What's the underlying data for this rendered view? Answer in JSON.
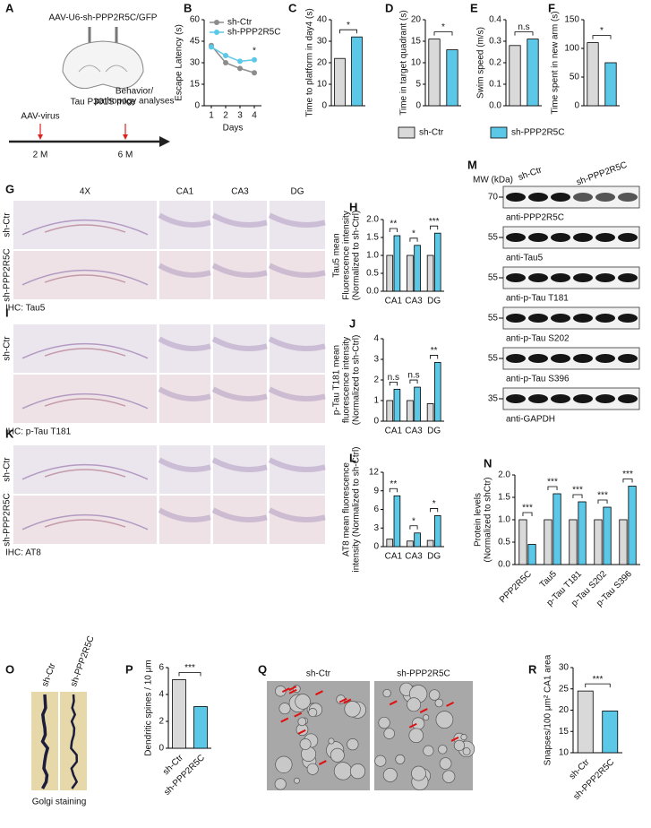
{
  "figure": {
    "A": {
      "letter": "A",
      "construct": "AAV-U6-sh-PPP2R5C/GFP",
      "mice": "Tau P301S mice",
      "injection": "AAV-virus",
      "analysis": [
        "Behavior/",
        "pathopogy analyses"
      ],
      "timepoints": [
        "2 M",
        "6 M"
      ]
    },
    "legend": [
      {
        "name": "sh-Ctr",
        "color": "#d9d9d9"
      },
      {
        "name": "sh-PPP2R5C",
        "color": "#5bc8e8"
      }
    ],
    "G": {
      "letter": "G",
      "columns": [
        "4X",
        "CA1",
        "CA3",
        "DG"
      ],
      "rows": [
        "sh-Ctr",
        "sh-PPP2R5C"
      ],
      "stain": "IHC: Tau5"
    },
    "I": {
      "letter": "I",
      "rows": [
        "sh-Ctr"
      ],
      "stain": "IHC: p-Tau T181"
    },
    "K": {
      "letter": "K",
      "rows": [
        "sh-Ctr",
        "sh-PPP2R5C"
      ],
      "stain": "IHC: AT8"
    },
    "M": {
      "letter": "M",
      "mw_label": "MW (kDa)",
      "groups": [
        "sh-Ctr",
        "sh-PPP2R5C"
      ],
      "blots": [
        {
          "mw": "70",
          "label": "anti-PPP2R5C"
        },
        {
          "mw": "55",
          "label": "anti-Tau5"
        },
        {
          "mw": "55",
          "label": "anti-p-Tau T181"
        },
        {
          "mw": "55",
          "label": "anti-p-Tau S202"
        },
        {
          "mw": "55",
          "label": "anti-p-Tau S396"
        },
        {
          "mw": "35",
          "label": "anti-GAPDH"
        }
      ]
    },
    "O": {
      "letter": "O",
      "groups": [
        "sh-Ctr",
        "sh-PPP2R5C"
      ],
      "caption": "Golgi staining"
    },
    "Q": {
      "letter": "Q",
      "groups": [
        "sh-Ctr",
        "sh-PPP2R5C"
      ]
    }
  },
  "chart_data": [
    {
      "type": "line",
      "panel": "B",
      "ylabel": [
        "Escape Latency (s)"
      ],
      "xlabel": "Days",
      "x": [
        1,
        2,
        3,
        4
      ],
      "xlim": [
        0.5,
        4.5
      ],
      "xticks": [
        1,
        2,
        3,
        4
      ],
      "ylim": [
        0,
        60
      ],
      "yticks": [
        0,
        15,
        30,
        45,
        60
      ],
      "series": [
        {
          "name": "sh-Ctr",
          "color": "#8c8c8c",
          "values": [
            42,
            30,
            26,
            23
          ]
        },
        {
          "name": "sh-PPP2R5C",
          "color": "#5bc8e8",
          "values": [
            41,
            35,
            31,
            32
          ]
        }
      ],
      "annotations": [
        "*"
      ]
    },
    {
      "type": "bar",
      "panel": "C",
      "ylabel": [
        "Time to platform in day4 (s)"
      ],
      "values": [
        22,
        32
      ],
      "colors": [
        "#d9d9d9",
        "#5bc8e8"
      ],
      "ylim": [
        0,
        40
      ],
      "yticks": [
        0,
        10,
        20,
        30,
        40
      ],
      "annotations": [
        "*"
      ]
    },
    {
      "type": "bar",
      "panel": "D",
      "ylabel": [
        "Time in target quadrant (s)"
      ],
      "values": [
        15.5,
        13
      ],
      "colors": [
        "#d9d9d9",
        "#5bc8e8"
      ],
      "ylim": [
        0,
        20
      ],
      "yticks": [
        0,
        5,
        10,
        15,
        20
      ],
      "annotations": [
        "*"
      ]
    },
    {
      "type": "bar",
      "panel": "E",
      "ylabel": [
        "Swim speed (m/s)"
      ],
      "values": [
        0.28,
        0.31
      ],
      "colors": [
        "#d9d9d9",
        "#5bc8e8"
      ],
      "ylim": [
        0,
        0.4
      ],
      "yticks": [
        {
          "value": 0,
          "label": "0.0"
        },
        0.1,
        0.2,
        0.3,
        0.4
      ],
      "annotations": [
        "n.s"
      ]
    },
    {
      "type": "bar",
      "panel": "F",
      "ylabel": [
        "Time spent in new arm (s)"
      ],
      "values": [
        110,
        75
      ],
      "colors": [
        "#d9d9d9",
        "#5bc8e8"
      ],
      "ylim": [
        0,
        150
      ],
      "yticks": [
        0,
        50,
        100,
        150
      ],
      "annotations": [
        "*"
      ]
    },
    {
      "type": "bar",
      "panel": "H",
      "ylabel": [
        "Tau5 mean",
        "Fluorescence intensity",
        "(Normalized to sh-Ctrl)"
      ],
      "categories": [
        "CA1",
        "CA3",
        "DG"
      ],
      "series": [
        {
          "color": "#d9d9d9",
          "values": [
            1.0,
            1.0,
            1.0
          ]
        },
        {
          "color": "#5bc8e8",
          "values": [
            1.55,
            1.28,
            1.62
          ]
        }
      ],
      "ylim": [
        0,
        2
      ],
      "yticks": [
        {
          "value": 0,
          "label": "0.0"
        },
        0.5,
        {
          "value": 1,
          "label": "1.0"
        },
        1.5,
        {
          "value": 2,
          "label": "2.0"
        }
      ],
      "annotations": [
        "**",
        "*",
        "***"
      ]
    },
    {
      "type": "bar",
      "panel": "J",
      "ylabel": [
        "p-Tau T181 mean",
        "fluorescence intensity",
        "(Normalized to sh-Ctrl)"
      ],
      "categories": [
        "CA1",
        "CA3",
        "DG"
      ],
      "series": [
        {
          "color": "#d9d9d9",
          "values": [
            1.0,
            1.0,
            0.85
          ]
        },
        {
          "color": "#5bc8e8",
          "values": [
            1.55,
            1.65,
            2.85
          ]
        }
      ],
      "ylim": [
        0,
        4
      ],
      "yticks": [
        0,
        1,
        2,
        3,
        4
      ],
      "annotations": [
        "n.s",
        "n.s",
        "**"
      ]
    },
    {
      "type": "bar",
      "panel": "L",
      "ylabel": [
        "AT8 mean fluorescence",
        "intensity (Normalized to sh-Ctrl)"
      ],
      "categories": [
        "CA1",
        "CA3",
        "DG"
      ],
      "series": [
        {
          "color": "#d9d9d9",
          "values": [
            1.2,
            0.9,
            1.0
          ]
        },
        {
          "color": "#5bc8e8",
          "values": [
            8.2,
            2.2,
            5.0
          ]
        }
      ],
      "ylim": [
        0,
        12
      ],
      "yticks": [
        0,
        3,
        6,
        9,
        12
      ],
      "annotations": [
        "**",
        "*",
        "*"
      ]
    },
    {
      "type": "bar",
      "panel": "N",
      "ylabel": [
        "Protein levels",
        "(Normalized to shCtr)"
      ],
      "categories": [
        "PPP2R5C",
        "Tau5",
        "p-Tau T181",
        "p-Tau S202",
        "p-Tau S396"
      ],
      "series": [
        {
          "color": "#d9d9d9",
          "values": [
            1.0,
            1.0,
            1.0,
            1.0,
            1.0
          ]
        },
        {
          "color": "#5bc8e8",
          "values": [
            0.45,
            1.58,
            1.4,
            1.28,
            1.75
          ]
        }
      ],
      "ylim": [
        0,
        2
      ],
      "yticks": [
        {
          "value": 0,
          "label": "0.0"
        },
        0.5,
        {
          "value": 1,
          "label": "1.0"
        },
        1.5,
        {
          "value": 2,
          "label": "2.0"
        }
      ],
      "annotations": [
        "***",
        "***",
        "***",
        "***",
        "***"
      ]
    },
    {
      "type": "bar",
      "panel": "P",
      "ylabel": [
        "Dendritic spines / 10 μm"
      ],
      "categories": [
        "sh-Ctr",
        "sh-PPP2R5C"
      ],
      "values": [
        5.1,
        3.1
      ],
      "colors": [
        "#d9d9d9",
        "#5bc8e8"
      ],
      "ylim": [
        0,
        6
      ],
      "yticks": [
        0,
        2,
        4,
        6
      ],
      "annotations": [
        "***"
      ]
    },
    {
      "type": "bar",
      "panel": "R",
      "ylabel": [
        "Snapses/100 μm² CA1 area"
      ],
      "categories": [
        "sh-Ctr",
        "sh-PPP2R5C"
      ],
      "values": [
        24.5,
        19.8
      ],
      "colors": [
        "#d9d9d9",
        "#5bc8e8"
      ],
      "ylim": [
        10,
        30
      ],
      "yticks": [
        10,
        15,
        20,
        25,
        30
      ],
      "annotations": [
        "***"
      ]
    }
  ]
}
